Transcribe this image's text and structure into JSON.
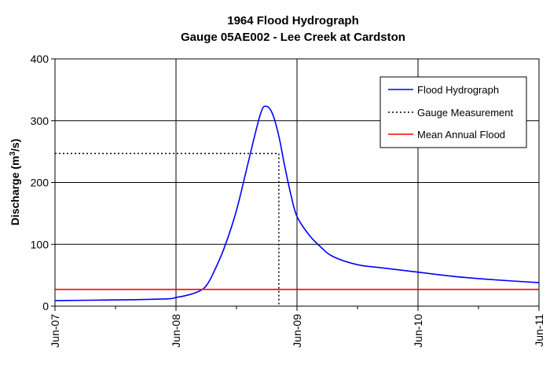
{
  "chart_data": {
    "type": "line",
    "title": "1964 Flood Hydrograph",
    "subtitle": "Gauge 05AE002 - Lee Creek at Cardston",
    "xlabel": "",
    "ylabel_main": "Discharge (m",
    "ylabel_sup": "3",
    "ylabel_tail": "/s)",
    "xlim": [
      "Jun-07",
      "Jun-11"
    ],
    "ylim": [
      0,
      400
    ],
    "x_ticks": [
      "Jun-07",
      "Jun-08",
      "Jun-09",
      "Jun-10",
      "Jun-11"
    ],
    "y_ticks": [
      0,
      100,
      200,
      300,
      400
    ],
    "grid": true,
    "legend_position": "top-right",
    "series": [
      {
        "name": "Flood Hydrograph",
        "color": "#0000ff",
        "style": "solid",
        "x": [
          0,
          0.5,
          0.8,
          0.95,
          1.0,
          1.1,
          1.2,
          1.25,
          1.3,
          1.4,
          1.5,
          1.6,
          1.7,
          1.75,
          1.8,
          1.85,
          1.9,
          1.95,
          2.0,
          2.1,
          2.2,
          2.3,
          2.5,
          2.7,
          3.0,
          3.3,
          3.6,
          4.0
        ],
        "y": [
          9,
          10,
          11,
          12,
          14,
          18,
          25,
          33,
          50,
          95,
          155,
          235,
          312,
          323,
          310,
          275,
          225,
          180,
          145,
          115,
          95,
          80,
          67,
          62,
          55,
          48,
          43,
          38
        ]
      },
      {
        "name": "Gauge Measurement",
        "color": "#000000",
        "style": "dotted",
        "x": [
          0,
          1.85,
          1.85
        ],
        "y": [
          247,
          247,
          0
        ]
      },
      {
        "name": "Mean Annual Flood",
        "color": "#ff0000",
        "style": "solid",
        "x": [
          0,
          4.0
        ],
        "y": [
          27,
          27
        ]
      }
    ]
  }
}
